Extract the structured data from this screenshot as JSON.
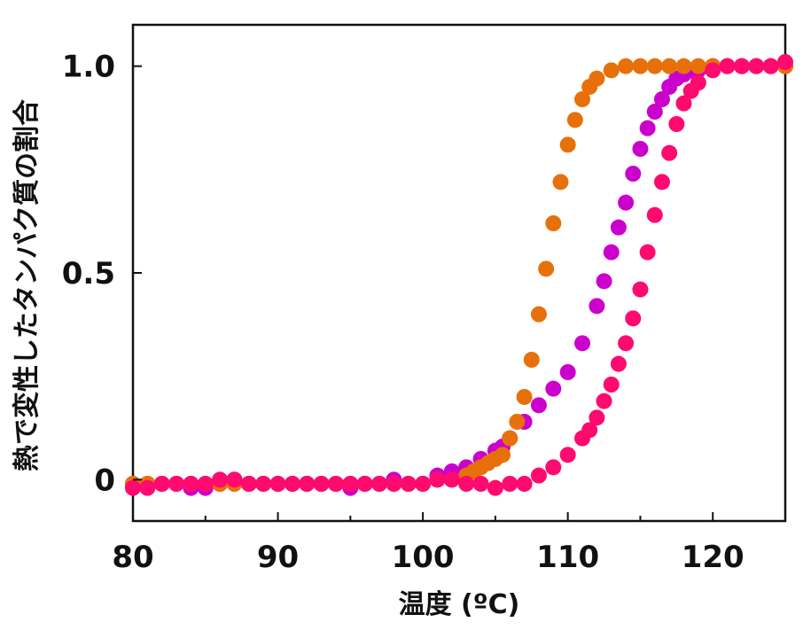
{
  "chart_data": {
    "type": "scatter",
    "xlabel": "温度 (ºC)",
    "ylabel": "熱で変性したタンパク質の割合",
    "xlim": [
      80,
      125
    ],
    "ylim": [
      -0.1,
      1.1
    ],
    "x_ticks": [
      80,
      90,
      100,
      110,
      120
    ],
    "x_tick_labels": [
      "80",
      "90",
      "100",
      "110",
      "120"
    ],
    "y_ticks": [
      0,
      0.5,
      1.0
    ],
    "y_tick_labels": [
      "0",
      "0.5",
      "1.0"
    ],
    "grid": false,
    "legend": "none",
    "series": [
      {
        "color": "#cc00cc",
        "x": [
          80,
          81,
          82,
          83,
          84,
          85,
          86,
          87,
          88,
          89,
          90,
          91,
          92,
          93,
          94,
          95,
          96,
          97,
          98,
          99,
          100,
          101,
          102,
          103,
          104,
          105,
          105.5,
          106,
          107,
          108,
          109,
          110,
          111,
          112,
          112.5,
          113,
          113.5,
          114,
          114.5,
          115,
          115.5,
          116,
          116.5,
          117,
          117.5,
          118,
          118.5,
          119,
          120,
          121,
          122,
          123,
          124,
          125
        ],
        "y": [
          -0.01,
          -0.01,
          -0.01,
          -0.01,
          -0.02,
          -0.02,
          -0.01,
          0,
          -0.01,
          -0.01,
          -0.01,
          -0.01,
          -0.01,
          -0.01,
          -0.01,
          -0.02,
          -0.01,
          -0.01,
          0,
          -0.01,
          -0.01,
          0.01,
          0.02,
          0.03,
          0.05,
          0.07,
          0.08,
          0.1,
          0.14,
          0.18,
          0.22,
          0.26,
          0.33,
          0.42,
          0.48,
          0.55,
          0.61,
          0.67,
          0.74,
          0.8,
          0.85,
          0.89,
          0.92,
          0.95,
          0.97,
          0.98,
          0.99,
          0.99,
          1.0,
          1.0,
          1.0,
          1.0,
          1.0,
          1.0
        ]
      },
      {
        "color": "#e8700a",
        "x": [
          80,
          81,
          82,
          83,
          84,
          85,
          86,
          87,
          88,
          89,
          90,
          91,
          92,
          93,
          94,
          95,
          96,
          97,
          98,
          99,
          100,
          101,
          102,
          103,
          103.5,
          104,
          104.5,
          105,
          105.5,
          106,
          106.5,
          107,
          107.5,
          108,
          108.5,
          109,
          109.5,
          110,
          110.5,
          111,
          111.5,
          112,
          113,
          114,
          115,
          116,
          117,
          118,
          119,
          120,
          121,
          122,
          123,
          124,
          125
        ],
        "y": [
          -0.01,
          -0.01,
          -0.01,
          -0.01,
          -0.01,
          -0.01,
          -0.01,
          -0.01,
          -0.01,
          -0.01,
          -0.01,
          -0.01,
          -0.01,
          -0.01,
          -0.01,
          -0.01,
          -0.01,
          -0.01,
          -0.01,
          -0.01,
          -0.01,
          0,
          0,
          0.01,
          0.02,
          0.03,
          0.04,
          0.05,
          0.06,
          0.1,
          0.14,
          0.2,
          0.29,
          0.4,
          0.51,
          0.62,
          0.72,
          0.81,
          0.87,
          0.92,
          0.95,
          0.97,
          0.99,
          1.0,
          1.0,
          1.0,
          1.0,
          1.0,
          1.0,
          1.0,
          1.0,
          1.0,
          1.0,
          1.0,
          1.0
        ]
      },
      {
        "color": "#ff0a6e",
        "x": [
          80,
          81,
          82,
          83,
          84,
          85,
          86,
          87,
          88,
          89,
          90,
          91,
          92,
          93,
          94,
          95,
          96,
          97,
          98,
          99,
          100,
          101,
          102,
          103,
          104,
          105,
          106,
          107,
          108,
          109,
          110,
          111,
          111.5,
          112,
          112.5,
          113,
          113.5,
          114,
          114.5,
          115,
          115.5,
          116,
          116.5,
          117,
          117.5,
          118,
          118.5,
          119,
          120,
          121,
          122,
          123,
          124,
          125
        ],
        "y": [
          -0.02,
          -0.02,
          -0.01,
          -0.01,
          -0.01,
          -0.01,
          0,
          0,
          -0.01,
          -0.01,
          -0.01,
          -0.01,
          -0.01,
          -0.01,
          -0.01,
          -0.01,
          -0.01,
          -0.01,
          -0.01,
          -0.01,
          -0.01,
          0,
          0,
          -0.01,
          -0.01,
          -0.02,
          -0.01,
          -0.01,
          0.01,
          0.03,
          0.06,
          0.1,
          0.12,
          0.15,
          0.19,
          0.23,
          0.28,
          0.33,
          0.39,
          0.46,
          0.55,
          0.64,
          0.72,
          0.79,
          0.86,
          0.91,
          0.94,
          0.96,
          0.99,
          1.0,
          1.0,
          1.0,
          1.0,
          1.01
        ]
      }
    ]
  }
}
